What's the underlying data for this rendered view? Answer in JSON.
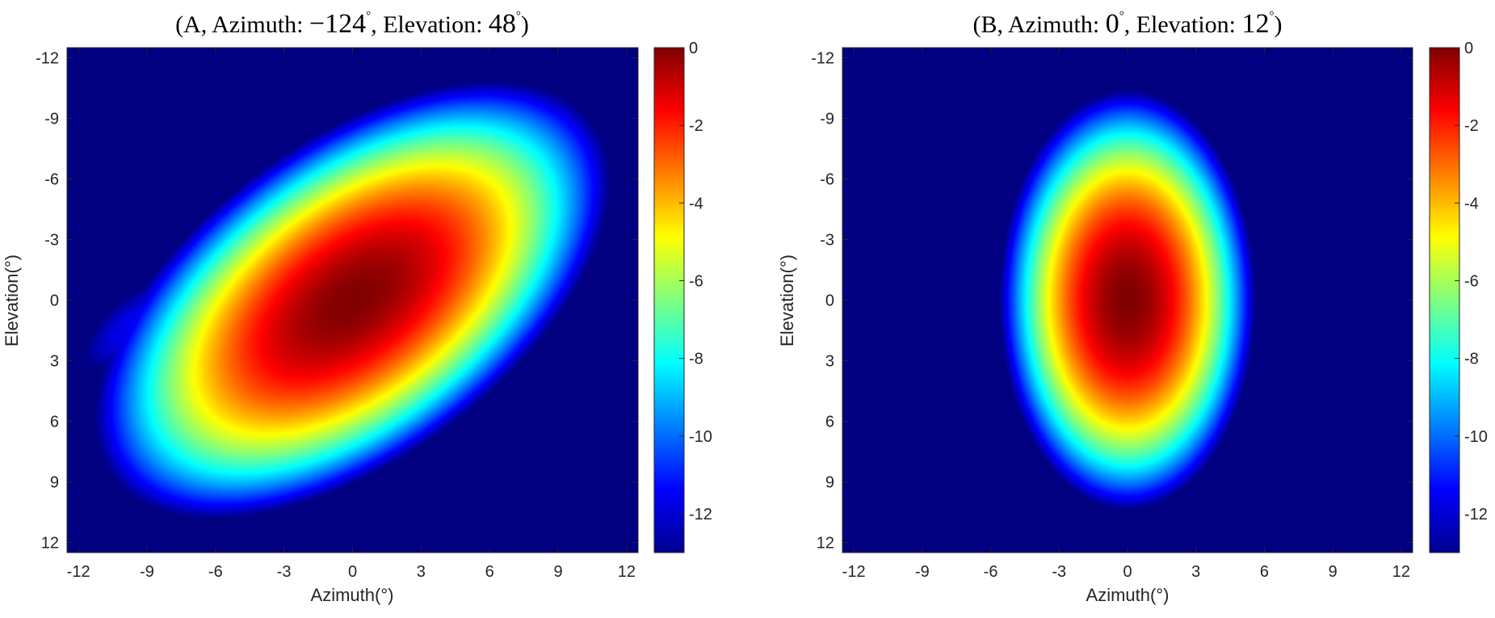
{
  "chart_data": [
    {
      "type": "heatmap",
      "title_parts": [
        "(A, Azimuth: ",
        "−124",
        "°",
        ", Elevation: ",
        "48",
        "°",
        ")"
      ],
      "xlabel": "Azimuth(°)",
      "ylabel": "Elevation(°)",
      "xlim": [
        -12.5,
        12.5
      ],
      "ylim": [
        -12.5,
        12.5
      ],
      "y_reversed": true,
      "xticks": [
        -12,
        -9,
        -6,
        -3,
        0,
        3,
        6,
        9,
        12
      ],
      "yticks": [
        -12,
        -9,
        -6,
        -3,
        0,
        3,
        6,
        9,
        12
      ],
      "colorbar": {
        "range": [
          -13,
          0
        ],
        "ticks": [
          0,
          -2,
          -4,
          -6,
          -8,
          -10,
          -12
        ],
        "colormap": "jet"
      },
      "features": [
        {
          "kind": "main_lobe",
          "center": [
            0,
            0
          ],
          "peak_db": 0,
          "orientation": "tilted, upper-right to lower-left"
        },
        {
          "kind": "sidelobe",
          "center": [
            -9.5,
            1.2
          ],
          "peak_db": -11.5
        },
        {
          "kind": "sidelobe",
          "center": [
            8.2,
            -0.7
          ],
          "peak_db": -11.8
        }
      ]
    },
    {
      "type": "heatmap",
      "title_parts": [
        "(B, Azimuth: ",
        "0",
        "°",
        ", Elevation: ",
        "12",
        "°",
        ")"
      ],
      "xlabel": "Azimuth(°)",
      "ylabel": "Elevation(°)",
      "xlim": [
        -12.5,
        12.5
      ],
      "ylim": [
        -12.5,
        12.5
      ],
      "y_reversed": true,
      "xticks": [
        -12,
        -9,
        -6,
        -3,
        0,
        3,
        6,
        9,
        12
      ],
      "yticks": [
        -12,
        -9,
        -6,
        -3,
        0,
        3,
        6,
        9,
        12
      ],
      "colorbar": {
        "range": [
          -13,
          0
        ],
        "ticks": [
          0,
          -2,
          -4,
          -6,
          -8,
          -10,
          -12
        ],
        "colormap": "jet"
      },
      "features": [
        {
          "kind": "main_lobe",
          "center": [
            0,
            0
          ],
          "peak_db": 0,
          "orientation": "vertical ellipse"
        }
      ]
    }
  ]
}
